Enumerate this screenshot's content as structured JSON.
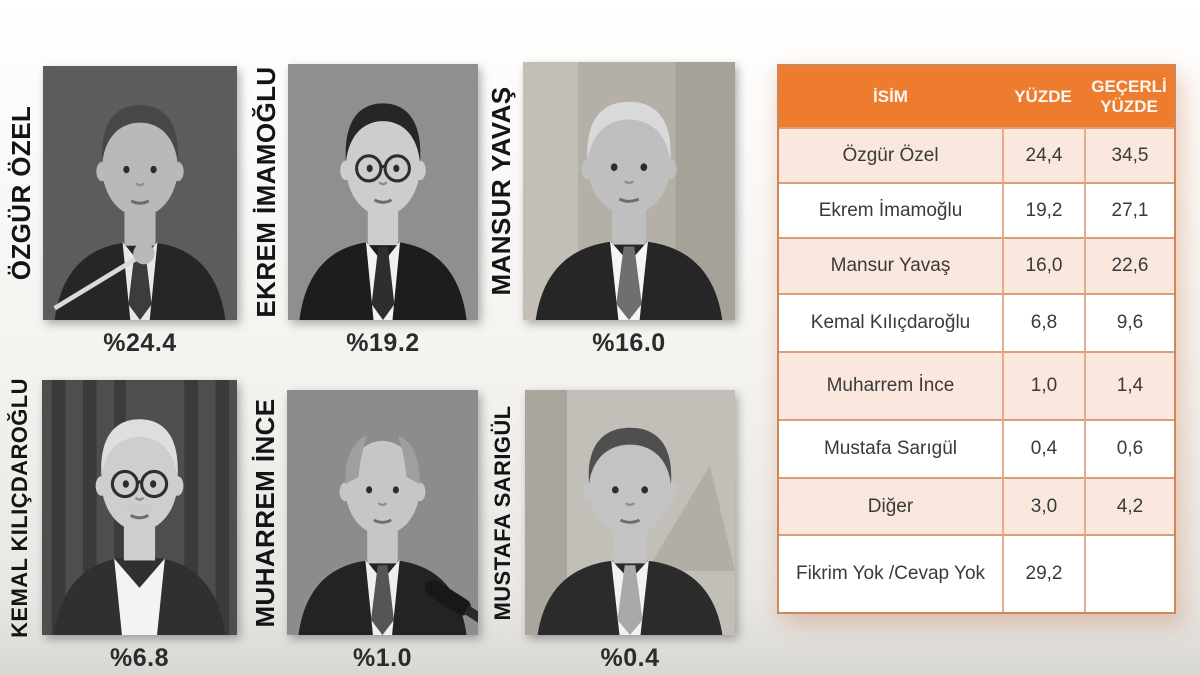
{
  "people": [
    {
      "label": "ÖZGÜR ÖZEL",
      "pct_label": "%24.4",
      "photo": {
        "bg": "#5c5c5c",
        "suit": "#262626",
        "shirt": "#e8e8e8",
        "tie": "#3c3c3c",
        "skin": "#b9b9b9",
        "hair": "#474747",
        "motif": "none",
        "glasses": false,
        "mustache": false,
        "bald": false,
        "open_collar": false,
        "mic": false,
        "baton": true
      }
    },
    {
      "label": "EKREM İMAMOĞLU",
      "pct_label": "%19.2",
      "photo": {
        "bg": "#8f8f8f",
        "suit": "#1d1d1d",
        "shirt": "#f2f2f2",
        "tie": "#2e2e2e",
        "skin": "#cdcdcd",
        "hair": "#262626",
        "motif": "none",
        "glasses": true,
        "mustache": false,
        "bald": false,
        "open_collar": false,
        "mic": false,
        "baton": false
      }
    },
    {
      "label": "MANSUR YAVAŞ",
      "pct_label": "%16.0",
      "photo": {
        "bg": "#b4b0a8",
        "suit": "#262626",
        "shirt": "#f5f5f5",
        "tie": "#6f6f6f",
        "skin": "#bfbfbf",
        "hair": "#d9d9d9",
        "motif": "mottled",
        "glasses": false,
        "mustache": false,
        "bald": false,
        "open_collar": false,
        "mic": false,
        "baton": false
      }
    },
    {
      "label": "KEMAL KILIÇDAROĞLU",
      "pct_label": "%6.8",
      "photo": {
        "bg": "#4e4e4e",
        "suit": "#303030",
        "shirt": "#f3f3f3",
        "tie": null,
        "skin": "#cecece",
        "hair": "#dedede",
        "motif": "stripes",
        "glasses": true,
        "mustache": true,
        "bald": false,
        "open_collar": true,
        "mic": false,
        "baton": false
      }
    },
    {
      "label": "MUHARREM İNCE",
      "pct_label": "%1.0",
      "photo": {
        "bg": "#8c8c8c",
        "suit": "#232323",
        "shirt": "#efefef",
        "tie": "#555555",
        "skin": "#c6c6c6",
        "hair": "#9f9f9f",
        "motif": "none",
        "glasses": false,
        "mustache": false,
        "bald": true,
        "open_collar": false,
        "mic": true,
        "baton": false
      }
    },
    {
      "label": "MUSTAFA SARIGÜL",
      "pct_label": "%0.4",
      "photo": {
        "bg": "#c2bfb8",
        "suit": "#2b2b2b",
        "shirt": "#f2f2f2",
        "tie": "#a9a9a9",
        "skin": "#c3c3c3",
        "hair": "#4f4f4f",
        "motif": "pyramid",
        "glasses": false,
        "mustache": false,
        "bald": false,
        "open_collar": false,
        "mic": false,
        "baton": false
      }
    }
  ],
  "table": {
    "headers": [
      "İSİM",
      "YÜZDE",
      "GEÇERLİ YÜZDE"
    ],
    "rows": [
      {
        "name": "Özgür Özel",
        "yuzde": "24,4",
        "gecerli": "34,5"
      },
      {
        "name": "Ekrem İmamoğlu",
        "yuzde": "19,2",
        "gecerli": "27,1"
      },
      {
        "name": "Mansur Yavaş",
        "yuzde": "16,0",
        "gecerli": "22,6"
      },
      {
        "name": "Kemal Kılıçdaroğlu",
        "yuzde": "6,8",
        "gecerli": "9,6"
      },
      {
        "name": "Muharrem İnce",
        "yuzde": "1,0",
        "gecerli": "1,4"
      },
      {
        "name": "Mustafa Sarıgül",
        "yuzde": "0,4",
        "gecerli": "0,6"
      },
      {
        "name": "Diğer",
        "yuzde": "3,0",
        "gecerli": "4,2"
      },
      {
        "name": "Fikrim Yok /Cevap Yok",
        "yuzde": "29,2",
        "gecerli": ""
      }
    ],
    "colors": {
      "header_bg": "#ED7C2F",
      "header_text": "#FDF7F1",
      "row_pink": "#FAE7DE",
      "row_white": "#FFFFFF",
      "border": "#DD9D7A"
    }
  },
  "chart_data": {
    "type": "table",
    "title": "",
    "categories": [
      "Özgür Özel",
      "Ekrem İmamoğlu",
      "Mansur Yavaş",
      "Kemal Kılıçdaroğlu",
      "Muharrem İnce",
      "Mustafa Sarıgül",
      "Diğer",
      "Fikrim Yok /Cevap Yok"
    ],
    "series": [
      {
        "name": "YÜZDE",
        "values": [
          24.4,
          19.2,
          16.0,
          6.8,
          1.0,
          0.4,
          3.0,
          29.2
        ]
      },
      {
        "name": "GEÇERLİ YÜZDE",
        "values": [
          34.5,
          27.1,
          22.6,
          9.6,
          1.4,
          0.6,
          4.2,
          null
        ]
      }
    ],
    "photo_percent_labels": [
      "%24.4",
      "%19.2",
      "%16.0",
      "%6.8",
      "%1.0",
      "%0.4"
    ],
    "legend_position": "none",
    "grid": false
  }
}
